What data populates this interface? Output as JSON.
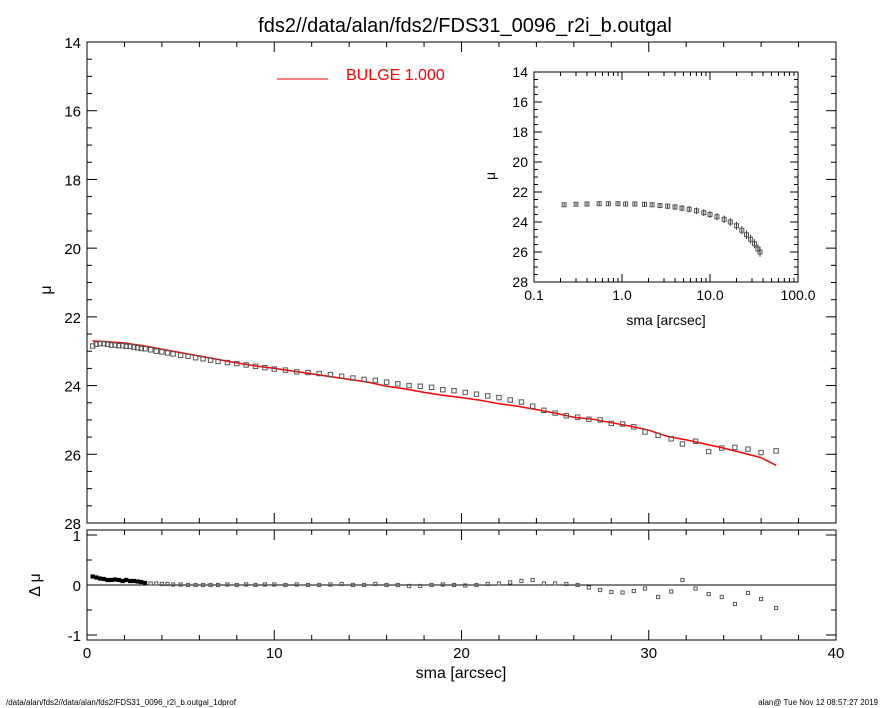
{
  "chart_data": [
    {
      "type": "scatter",
      "title": "fds2//data/alan/fds2/FDS31_0096_r2i_b.outgal",
      "xlabel": "sma [arcsec]",
      "ylabel": "μ",
      "xlim": [
        0,
        40
      ],
      "ylim": [
        28,
        14
      ],
      "x_ticks": [
        "0",
        "10",
        "20",
        "30",
        "40"
      ],
      "y_ticks": [
        "14",
        "16",
        "18",
        "20",
        "22",
        "24",
        "26",
        "28"
      ],
      "legend": {
        "label": "BULGE  1.000",
        "placement": "top-left",
        "color": "#ff0000"
      },
      "series": [
        {
          "kind": "data",
          "marker": "square",
          "color": "#555555",
          "x": [
            0.3,
            0.5,
            0.7,
            0.9,
            1.1,
            1.3,
            1.5,
            1.7,
            1.9,
            2.1,
            2.3,
            2.5,
            2.7,
            2.9,
            3.1,
            3.4,
            3.7,
            4.0,
            4.3,
            4.6,
            5.0,
            5.4,
            5.8,
            6.2,
            6.6,
            7.0,
            7.5,
            8.0,
            8.5,
            9.0,
            9.5,
            10.0,
            10.6,
            11.2,
            11.8,
            12.4,
            13.0,
            13.6,
            14.2,
            14.8,
            15.4,
            16.0,
            16.6,
            17.2,
            17.8,
            18.4,
            19.0,
            19.6,
            20.2,
            20.8,
            21.4,
            22.0,
            22.6,
            23.2,
            23.8,
            24.4,
            25.0,
            25.6,
            26.2,
            26.8,
            27.4,
            28.0,
            28.6,
            29.2,
            29.8,
            30.5,
            31.2,
            31.8,
            32.5,
            33.2,
            33.9,
            34.6,
            35.3,
            36.0,
            36.8
          ],
          "y": [
            22.85,
            22.8,
            22.78,
            22.78,
            22.8,
            22.82,
            22.82,
            22.84,
            22.84,
            22.86,
            22.86,
            22.88,
            22.9,
            22.92,
            22.93,
            22.96,
            23.0,
            23.02,
            23.05,
            23.08,
            23.12,
            23.15,
            23.19,
            23.22,
            23.26,
            23.3,
            23.33,
            23.36,
            23.4,
            23.44,
            23.48,
            23.52,
            23.55,
            23.6,
            23.62,
            23.65,
            23.68,
            23.73,
            23.78,
            23.82,
            23.85,
            23.9,
            23.95,
            24.0,
            24.02,
            24.05,
            24.12,
            24.15,
            24.2,
            24.25,
            24.3,
            24.35,
            24.42,
            24.48,
            24.6,
            24.72,
            24.8,
            24.88,
            24.92,
            24.98,
            25.0,
            25.1,
            25.12,
            25.2,
            25.35,
            25.45,
            25.55,
            25.7,
            25.62,
            25.92,
            25.82,
            25.8,
            25.85,
            25.95,
            25.9
          ]
        },
        {
          "kind": "model",
          "name": "BULGE  1.000",
          "color": "#ff0000",
          "x": [
            0.3,
            1,
            2,
            3,
            4,
            5,
            6,
            7,
            8,
            9,
            10,
            11,
            12,
            13,
            14,
            15,
            16,
            17,
            18,
            19,
            20,
            21,
            22,
            23,
            24,
            25,
            26,
            27,
            28,
            29,
            30,
            31,
            32,
            33,
            34,
            35,
            36,
            36.8
          ],
          "y": [
            22.7,
            22.72,
            22.76,
            22.84,
            22.94,
            23.04,
            23.14,
            23.24,
            23.34,
            23.43,
            23.5,
            23.58,
            23.66,
            23.74,
            23.82,
            23.9,
            24.02,
            24.1,
            24.2,
            24.28,
            24.35,
            24.43,
            24.53,
            24.6,
            24.7,
            24.8,
            24.92,
            24.98,
            25.08,
            25.18,
            25.3,
            25.48,
            25.58,
            25.7,
            25.82,
            25.96,
            26.1,
            26.32
          ]
        }
      ]
    },
    {
      "type": "scatter",
      "xlabel": "sma [arcsec]",
      "ylabel": "Δ μ",
      "xlim": [
        0,
        40
      ],
      "ylim": [
        -1.1,
        1.1
      ],
      "x_ticks": [
        "0",
        "10",
        "20",
        "30",
        "40"
      ],
      "y_ticks": [
        "1",
        "0",
        "-1"
      ],
      "zero_line": true,
      "series": [
        {
          "kind": "residual",
          "marker": "square",
          "color": "#555555",
          "x": [
            0.3,
            0.5,
            0.7,
            0.9,
            1.1,
            1.3,
            1.5,
            1.7,
            1.9,
            2.1,
            2.3,
            2.5,
            2.7,
            2.9,
            3.1,
            3.4,
            3.7,
            4.0,
            4.3,
            4.6,
            5.0,
            5.4,
            5.8,
            6.2,
            6.6,
            7.0,
            7.5,
            8.0,
            8.5,
            9.0,
            9.5,
            10.0,
            10.6,
            11.2,
            11.8,
            12.4,
            13.0,
            13.6,
            14.2,
            14.8,
            15.4,
            16.0,
            16.6,
            17.2,
            17.8,
            18.4,
            19.0,
            19.6,
            20.2,
            20.8,
            21.4,
            22.0,
            22.6,
            23.2,
            23.8,
            24.4,
            25.0,
            25.6,
            26.2,
            26.8,
            27.4,
            28.0,
            28.6,
            29.2,
            29.8,
            30.5,
            31.2,
            31.8,
            32.5,
            33.2,
            33.9,
            34.6,
            35.3,
            36.0,
            36.8
          ],
          "y": [
            0.17,
            0.15,
            0.13,
            0.12,
            0.1,
            0.1,
            0.11,
            0.1,
            0.08,
            0.1,
            0.08,
            0.08,
            0.07,
            0.06,
            0.04,
            0.03,
            0.03,
            0.02,
            0.02,
            0.01,
            0.01,
            0.0,
            0.0,
            0.0,
            0.0,
            0.0,
            0.01,
            0.0,
            0.01,
            0.0,
            0.01,
            0.01,
            0.0,
            0.01,
            0.0,
            0.0,
            0.01,
            0.02,
            0.0,
            0.0,
            0.02,
            0.0,
            0.0,
            -0.02,
            -0.02,
            0.0,
            0.01,
            0.0,
            -0.01,
            0.0,
            0.02,
            0.03,
            0.05,
            0.08,
            0.1,
            0.03,
            0.03,
            0.02,
            0.0,
            -0.05,
            -0.1,
            -0.14,
            -0.15,
            -0.12,
            -0.07,
            -0.24,
            -0.13,
            0.1,
            -0.07,
            -0.18,
            -0.24,
            -0.38,
            -0.16,
            -0.28,
            -0.46
          ]
        }
      ]
    },
    {
      "type": "scatter",
      "xlabel": "sma [arcsec]",
      "ylabel": "μ",
      "xscale": "log",
      "xlim": [
        0.1,
        100.0
      ],
      "ylim": [
        28,
        14
      ],
      "x_ticks": [
        "0.1",
        "1.0",
        "10.0",
        "100.0"
      ],
      "y_ticks": [
        "14",
        "16",
        "18",
        "20",
        "22",
        "24",
        "26",
        "28"
      ],
      "series": [
        {
          "kind": "data",
          "marker": "square-errorbar",
          "color": "#555555",
          "x": [
            0.22,
            0.3,
            0.4,
            0.55,
            0.7,
            0.9,
            1.1,
            1.4,
            1.8,
            2.2,
            2.7,
            3.3,
            4.0,
            4.8,
            5.8,
            7.0,
            8.5,
            10.0,
            12.0,
            14.5,
            17.0,
            20.0,
            23.0,
            26.0,
            29.0,
            32.0,
            35.0,
            37.0
          ],
          "y": [
            22.85,
            22.82,
            22.8,
            22.78,
            22.78,
            22.78,
            22.8,
            22.8,
            22.82,
            22.85,
            22.9,
            22.95,
            23.0,
            23.08,
            23.15,
            23.25,
            23.38,
            23.5,
            23.65,
            23.82,
            24.0,
            24.25,
            24.55,
            24.85,
            25.15,
            25.45,
            25.8,
            26.0
          ]
        }
      ]
    }
  ],
  "footer": {
    "left": "/data/alan/fds2//data/alan/fds2/FDS31_0096_r2i_b.outgal_1dprof",
    "right": "alan@  Tue Nov 12 08:57:27 2019"
  }
}
